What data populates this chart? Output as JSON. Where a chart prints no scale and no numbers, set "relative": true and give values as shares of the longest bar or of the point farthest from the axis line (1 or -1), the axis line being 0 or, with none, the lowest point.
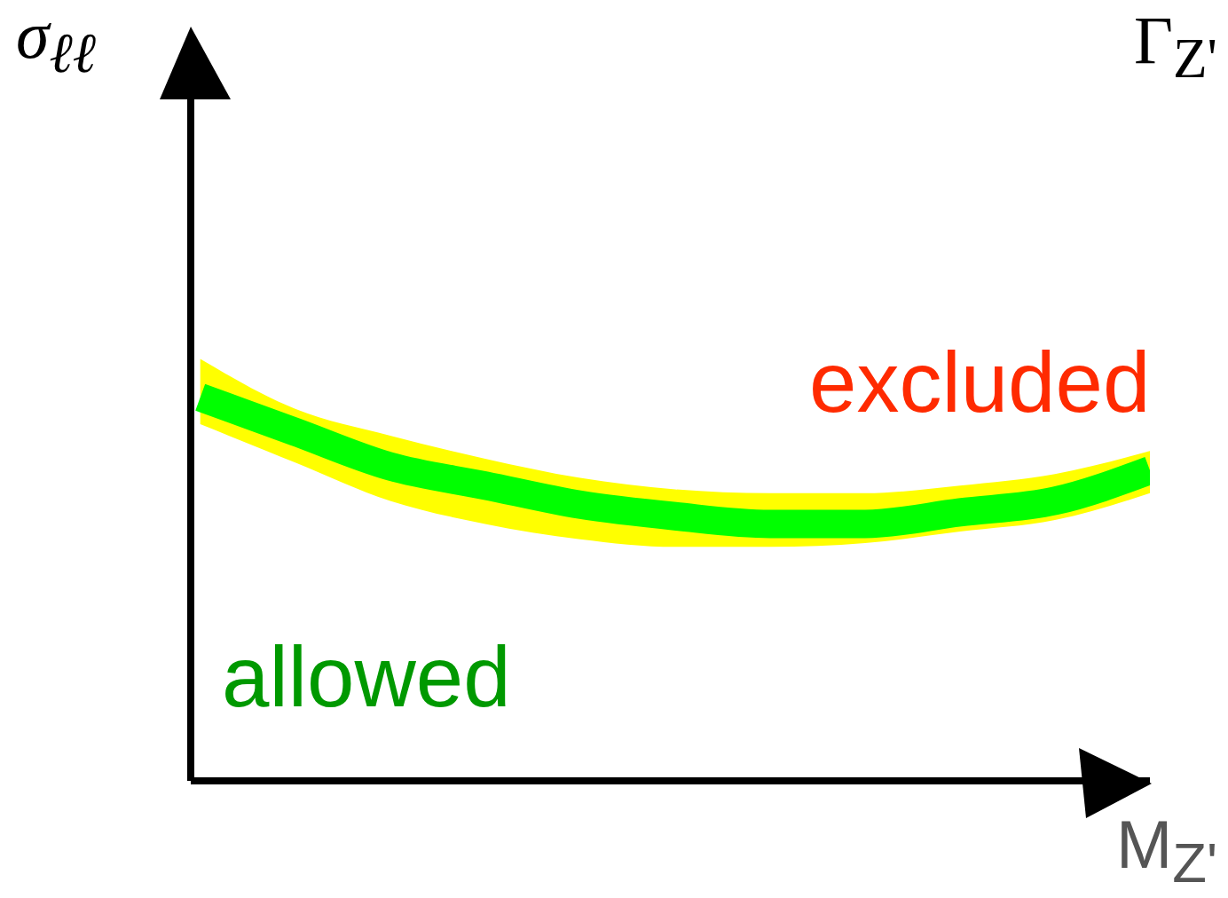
{
  "chart_data": {
    "type": "line",
    "relative": true,
    "title": "Γ$_{Z'}$",
    "ylabel": "σ$_{ℓℓ}$",
    "xlabel": "M$_{Z'}$",
    "categories": [
      null,
      null,
      null,
      null,
      null,
      null,
      null,
      null,
      null,
      null,
      null
    ],
    "series": [
      {
        "color": "#ffff00",
        "values": [
          null,
          null,
          null,
          null,
          null,
          null,
          null,
          null,
          null,
          null,
          null
        ],
        "lower": [
          0.93,
          0.83,
          0.73,
          0.67,
          0.63,
          0.61,
          0.61,
          0.62,
          0.65,
          0.68,
          0.75
        ],
        "upper": [
          1.1,
          0.97,
          0.9,
          0.84,
          0.79,
          0.76,
          0.75,
          0.75,
          0.77,
          0.8,
          0.86
        ]
      },
      {
        "color": "#00ff00",
        "values": [
          1.0,
          0.91,
          0.82,
          0.77,
          0.72,
          0.69,
          0.67,
          0.67,
          0.7,
          0.73,
          0.81
        ]
      }
    ],
    "annotations": [
      "excluded",
      "allowed"
    ]
  }
}
